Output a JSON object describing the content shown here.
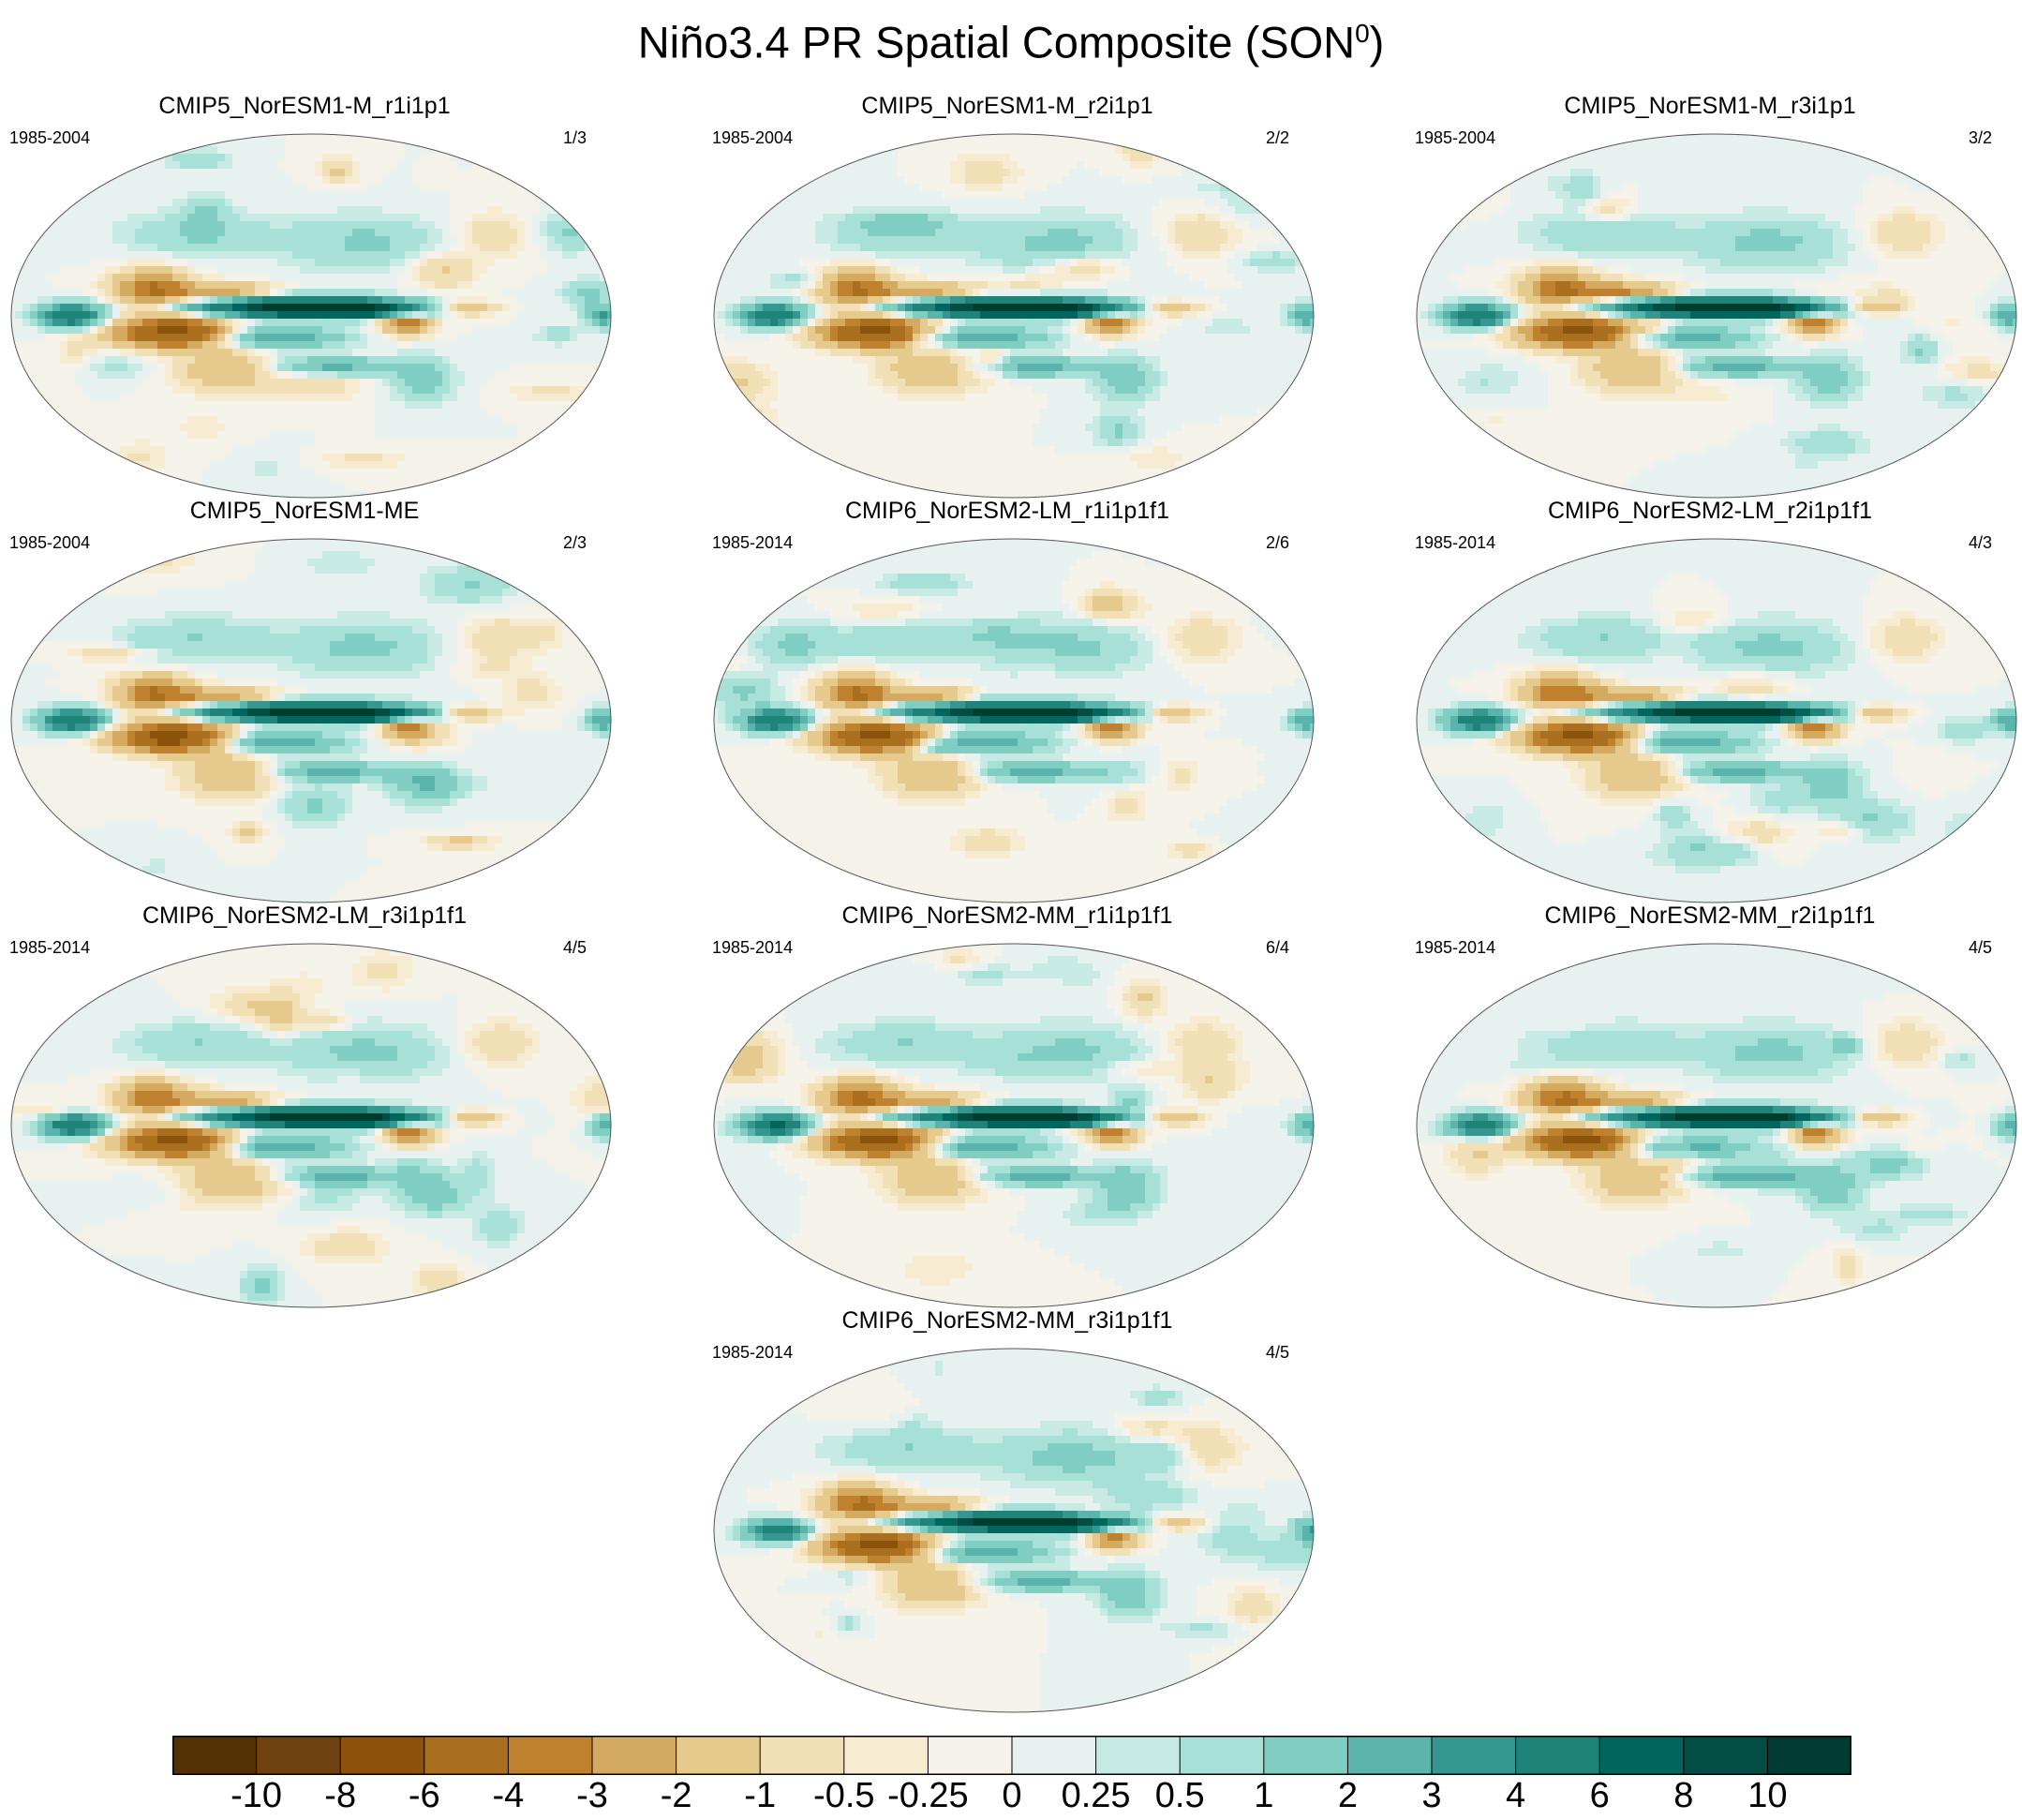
{
  "title": {
    "main": "Niño3.4 PR Spatial Composite (SON",
    "superscript": "0",
    "close": ")"
  },
  "chart_data": {
    "type": "heatmap",
    "title": "Niño3.4 PR Spatial Composite (SON0)",
    "variable": "PR",
    "colorbar": {
      "labels": [
        "-10",
        "-8",
        "-6",
        "-4",
        "-3",
        "-2",
        "-1",
        "-0.5",
        "-0.25",
        "0",
        "0.25",
        "0.5",
        "1",
        "2",
        "3",
        "4",
        "6",
        "8",
        "10"
      ],
      "colors": [
        "#543005",
        "#6f4110",
        "#8c510a",
        "#a96e1e",
        "#bf812d",
        "#d4aa61",
        "#e6c98d",
        "#f1e0b5",
        "#f7ecd1",
        "#f5f2ea",
        "#e7f2f0",
        "#c7eae5",
        "#a6e0d6",
        "#80cdc1",
        "#5ab4ab",
        "#35978f",
        "#1e8379",
        "#01665e",
        "#024d44",
        "#003c30"
      ]
    },
    "panels": [
      {
        "model": "CMIP5_NorESM1-M_r1i1p1",
        "years": "1985-2004",
        "count": "1/3"
      },
      {
        "model": "CMIP5_NorESM1-M_r2i1p1",
        "years": "1985-2004",
        "count": "2/2"
      },
      {
        "model": "CMIP5_NorESM1-M_r3i1p1",
        "years": "1985-2004",
        "count": "3/2"
      },
      {
        "model": "CMIP5_NorESM1-ME",
        "years": "1985-2004",
        "count": "2/3"
      },
      {
        "model": "CMIP6_NorESM2-LM_r1i1p1f1",
        "years": "1985-2014",
        "count": "2/6"
      },
      {
        "model": "CMIP6_NorESM2-LM_r2i1p1f1",
        "years": "1985-2014",
        "count": "4/3"
      },
      {
        "model": "CMIP6_NorESM2-LM_r3i1p1f1",
        "years": "1985-2014",
        "count": "4/5"
      },
      {
        "model": "CMIP6_NorESM2-MM_r1i1p1f1",
        "years": "1985-2014",
        "count": "6/4"
      },
      {
        "model": "CMIP6_NorESM2-MM_r2i1p1f1",
        "years": "1985-2014",
        "count": "4/5"
      },
      {
        "model": "CMIP6_NorESM2-MM_r3i1p1f1",
        "years": "1985-2014",
        "count": "4/5"
      }
    ]
  }
}
